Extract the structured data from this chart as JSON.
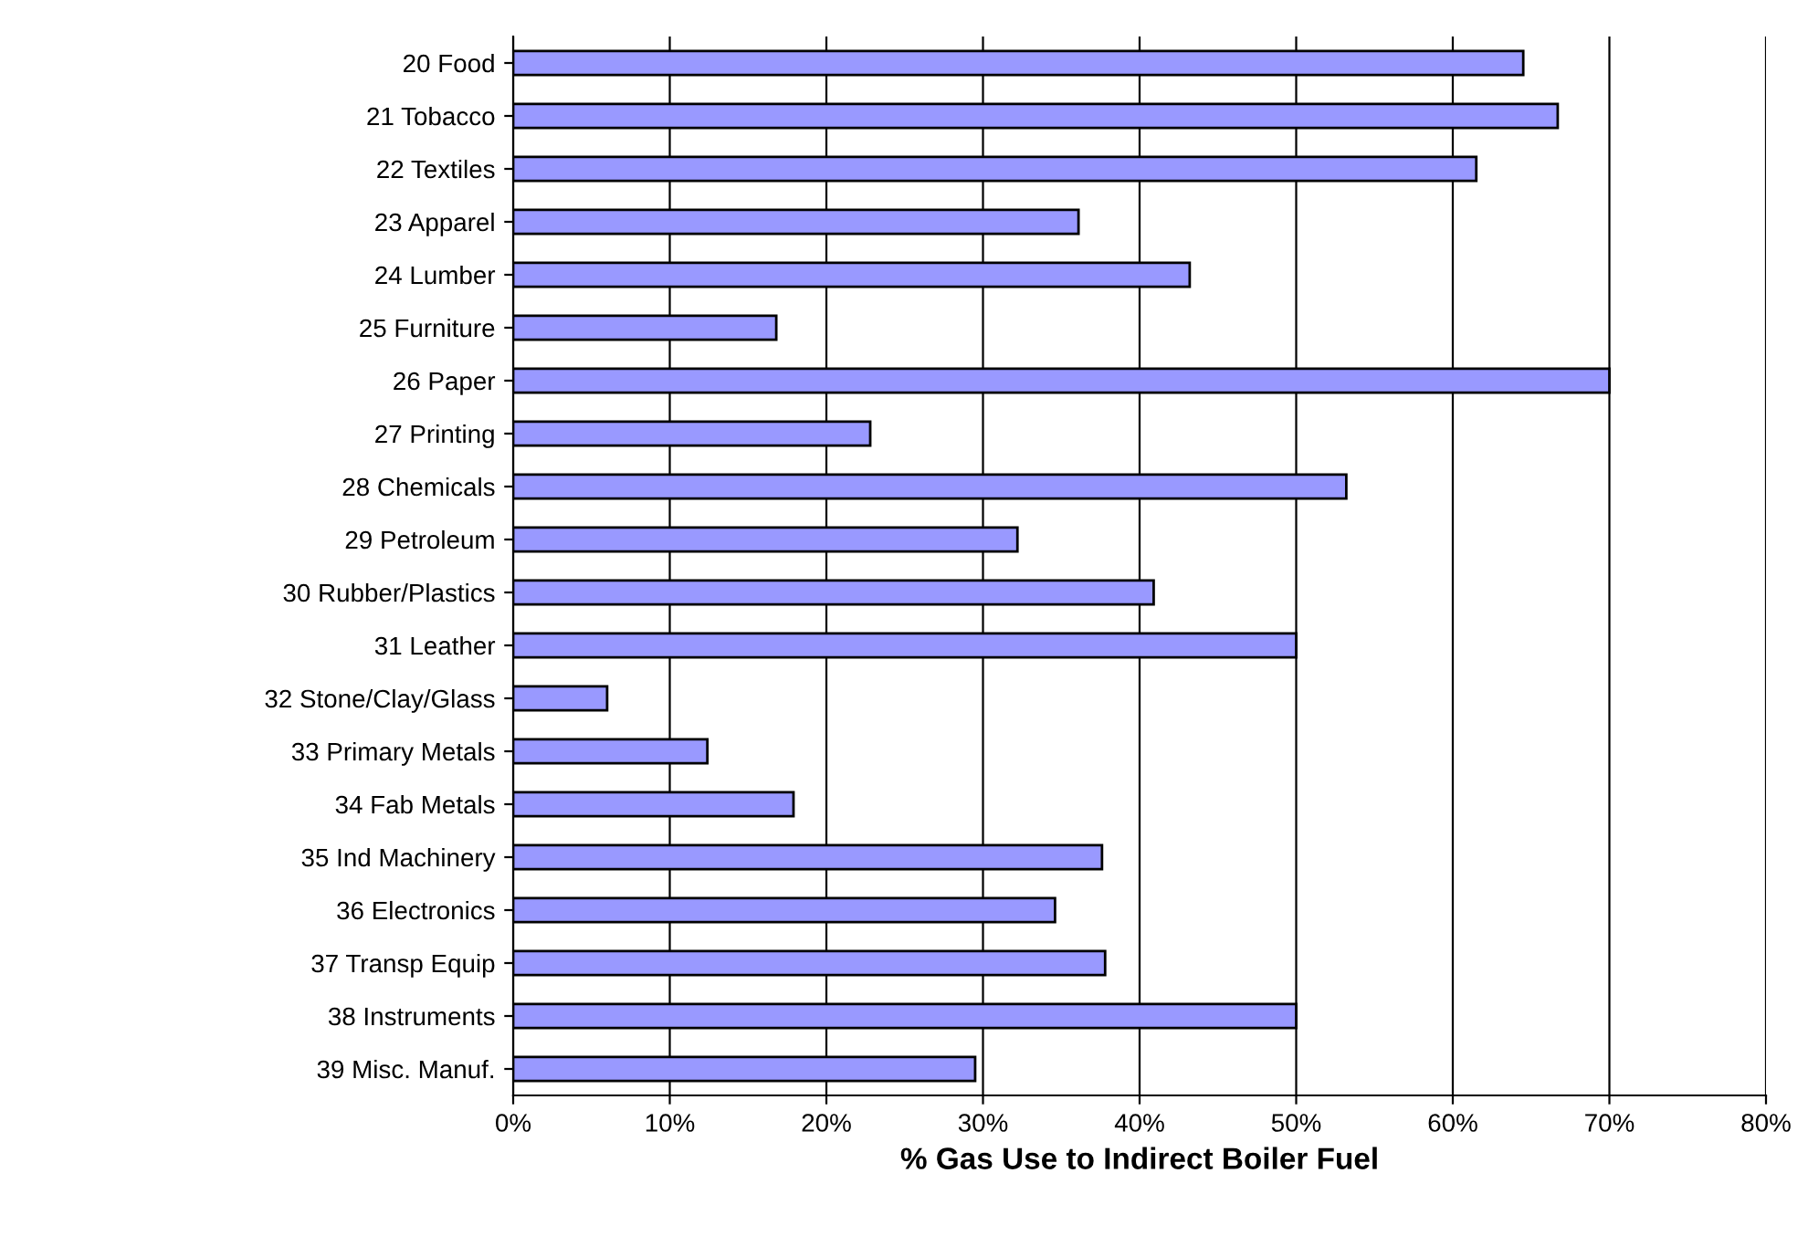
{
  "chart_data": {
    "type": "bar",
    "orientation": "horizontal",
    "xlabel": "% Gas Use to Indirect Boiler Fuel",
    "categories": [
      "20 Food",
      "21 Tobacco",
      "22 Textiles",
      "23 Apparel",
      "24 Lumber",
      "25 Furniture",
      "26 Paper",
      "27 Printing",
      "28 Chemicals",
      "29 Petroleum",
      "30 Rubber/Plastics",
      "31 Leather",
      "32 Stone/Clay/Glass",
      "33 Primary Metals",
      "34 Fab Metals",
      "35 Ind Machinery",
      "36 Electronics",
      "37 Transp Equip",
      "38 Instruments",
      "39 Misc. Manuf."
    ],
    "values": [
      64.5,
      66.7,
      61.5,
      36.1,
      43.2,
      16.8,
      70.0,
      22.8,
      53.2,
      32.2,
      40.9,
      50.0,
      6.0,
      12.4,
      17.9,
      37.6,
      34.6,
      37.8,
      50.0,
      29.5
    ],
    "color": "#9999ff",
    "xlim": [
      0,
      80
    ],
    "xticks": [
      {
        "value": 0,
        "label": "0%"
      },
      {
        "value": 10,
        "label": "10%"
      },
      {
        "value": 20,
        "label": "20%"
      },
      {
        "value": 30,
        "label": "30%"
      },
      {
        "value": 40,
        "label": "40%"
      },
      {
        "value": 50,
        "label": "50%"
      },
      {
        "value": 60,
        "label": "60%"
      },
      {
        "value": 70,
        "label": "70%"
      },
      {
        "value": 80,
        "label": "80%"
      }
    ],
    "grid": "x",
    "legend": false
  }
}
